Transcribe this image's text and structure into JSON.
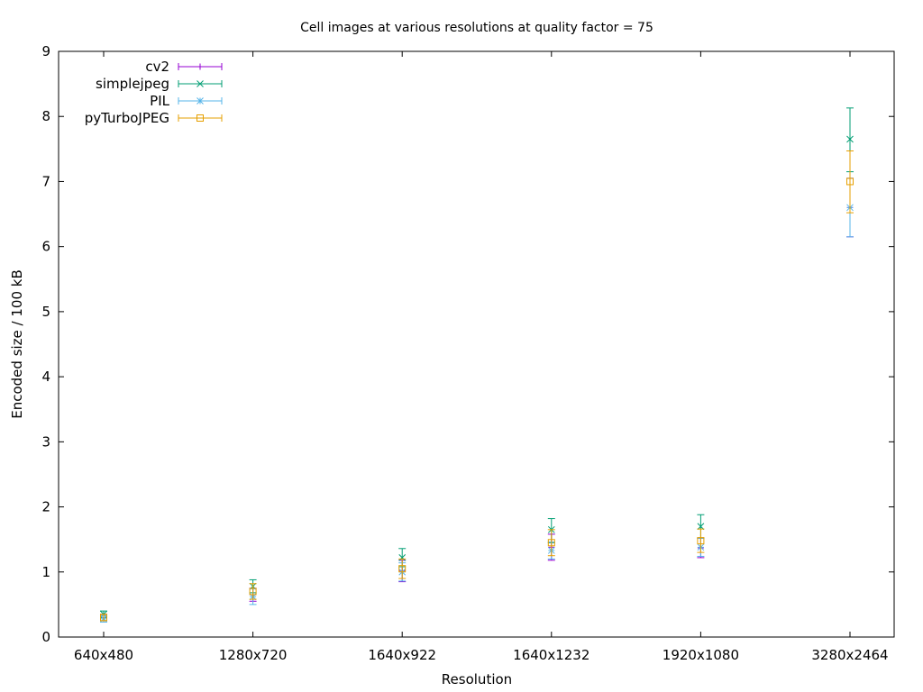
{
  "chart_data": {
    "type": "scatter",
    "title": "Cell images at various resolutions at quality factor = 75",
    "xlabel": "Resolution",
    "ylabel": "Encoded size / 100 kB",
    "categories": [
      "640x480",
      "1280x720",
      "1640x922",
      "1640x1232",
      "1920x1080",
      "3280x2464"
    ],
    "ylim": [
      0,
      9
    ],
    "yticks": [
      0,
      1,
      2,
      3,
      4,
      5,
      6,
      7,
      8,
      9
    ],
    "ytick_labels": [
      "0",
      "1",
      "2",
      "3",
      "4",
      "5",
      "6",
      "7",
      "8",
      "9"
    ],
    "grid": false,
    "legend_position": "top-left",
    "error_bars": true,
    "series": [
      {
        "name": "cv2",
        "color": "#9400d3",
        "marker": "plus",
        "values": [
          0.3,
          0.65,
          1.02,
          1.38,
          1.37,
          6.6
        ],
        "err_low": [
          0.25,
          0.55,
          0.85,
          1.18,
          1.22,
          6.15
        ],
        "err_high": [
          0.35,
          0.75,
          1.18,
          1.58,
          1.52,
          7.05
        ]
      },
      {
        "name": "simplejpeg",
        "color": "#009e73",
        "marker": "cross",
        "values": [
          0.35,
          0.78,
          1.22,
          1.65,
          1.7,
          7.65
        ],
        "err_low": [
          0.3,
          0.68,
          1.08,
          1.45,
          1.52,
          7.15
        ],
        "err_high": [
          0.4,
          0.88,
          1.36,
          1.82,
          1.88,
          8.13
        ]
      },
      {
        "name": "PIL",
        "color": "#56b4e9",
        "marker": "star",
        "values": [
          0.28,
          0.62,
          1.0,
          1.33,
          1.38,
          6.6
        ],
        "err_low": [
          0.23,
          0.5,
          0.86,
          1.2,
          1.24,
          6.15
        ],
        "err_high": [
          0.33,
          0.74,
          1.14,
          1.46,
          1.52,
          7.05
        ]
      },
      {
        "name": "pyTurboJPEG",
        "color": "#e69f00",
        "marker": "square",
        "values": [
          0.3,
          0.7,
          1.05,
          1.45,
          1.48,
          7.0
        ],
        "err_low": [
          0.25,
          0.58,
          0.9,
          1.25,
          1.3,
          6.52
        ],
        "err_high": [
          0.35,
          0.82,
          1.2,
          1.65,
          1.66,
          7.47
        ]
      }
    ]
  }
}
